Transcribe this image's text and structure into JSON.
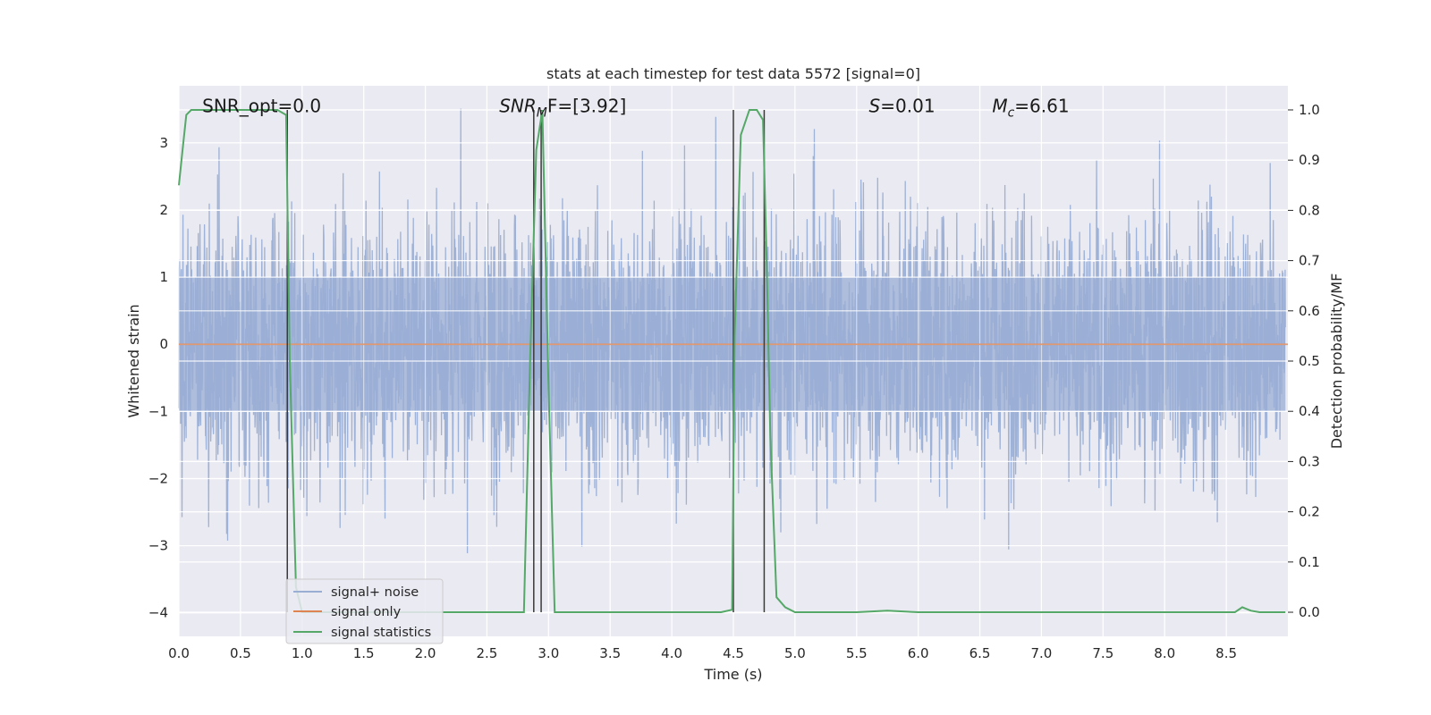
{
  "chart_data": {
    "type": "line",
    "title": "stats at each timestep for test data 5572 [signal=0]",
    "xlabel": "Time (s)",
    "ylabel_left": "Whitened strain",
    "ylabel_right": "Detection probability/MF",
    "xlim": [
      0.0,
      9.0
    ],
    "ylim_left": [
      -4.35,
      3.85
    ],
    "ylim_right": [
      -0.048,
      1.048
    ],
    "grid": true,
    "legend_position": "lower-left",
    "x_ticks": [
      "0.0",
      "0.5",
      "1.0",
      "1.5",
      "2.0",
      "2.5",
      "3.0",
      "3.5",
      "4.0",
      "4.5",
      "5.0",
      "5.5",
      "6.0",
      "6.5",
      "7.0",
      "7.5",
      "8.0",
      "8.5"
    ],
    "x_tick_values": [
      0.0,
      0.5,
      1.0,
      1.5,
      2.0,
      2.5,
      3.0,
      3.5,
      4.0,
      4.5,
      5.0,
      5.5,
      6.0,
      6.5,
      7.0,
      7.5,
      8.0,
      8.5
    ],
    "y_left_ticks": [
      "3",
      "2",
      "1",
      "0",
      "−1",
      "−2",
      "−3",
      "−4"
    ],
    "y_left_tick_values": [
      3,
      2,
      1,
      0,
      -1,
      -2,
      -3,
      -4
    ],
    "y_right_ticks": [
      "1.0",
      "0.9",
      "0.8",
      "0.7",
      "0.6",
      "0.5",
      "0.4",
      "0.3",
      "0.2",
      "0.1",
      "0.0"
    ],
    "y_right_tick_values": [
      1.0,
      0.9,
      0.8,
      0.7,
      0.6,
      0.5,
      0.4,
      0.3,
      0.2,
      0.1,
      0.0
    ],
    "annotations": [
      {
        "label": "SNR_opt=0.0",
        "x": 0.19,
        "y": 3.55
      },
      {
        "label": "SNR",
        "sub": "M",
        "rest": "F=[3.92]",
        "x": 2.6,
        "y": 3.55
      },
      {
        "label": "S",
        "rest": "=0.01",
        "x": 5.6,
        "y": 3.55
      },
      {
        "label": "M",
        "sub": "c",
        "rest": "=6.61",
        "x": 6.6,
        "y": 3.55
      }
    ],
    "series": [
      {
        "name": "signal+ noise",
        "axis": "left",
        "color": "#9aaed4",
        "style": "dense-noise",
        "band_min": -1.0,
        "band_max": 1.0,
        "typical_extremes": [
          -3.3,
          3.4
        ],
        "x_range": [
          0.0,
          8.98
        ]
      },
      {
        "name": "signal only",
        "axis": "left",
        "color": "#dd8452",
        "x": [
          0.0,
          9.0
        ],
        "y": [
          0.0,
          0.0
        ]
      },
      {
        "name": "signal statistics",
        "axis": "right",
        "color": "#55a868",
        "x": [
          0.0,
          0.03,
          0.06,
          0.1,
          0.2,
          0.5,
          0.8,
          0.87,
          0.9,
          0.95,
          1.0,
          2.5,
          2.8,
          2.85,
          2.9,
          2.95,
          3.0,
          3.05,
          3.1,
          4.4,
          4.49,
          4.51,
          4.56,
          4.63,
          4.69,
          4.74,
          4.77,
          4.8,
          4.85,
          4.92,
          5.0,
          5.07,
          5.5,
          5.75,
          6.0,
          8.5,
          8.57,
          8.63,
          8.7,
          8.77,
          8.98
        ],
        "y": [
          0.85,
          0.92,
          0.99,
          1.0,
          1.0,
          1.0,
          1.0,
          0.99,
          0.5,
          0.05,
          0.0,
          0.0,
          0.0,
          0.5,
          0.92,
          1.0,
          0.45,
          0.0,
          0.0,
          0.0,
          0.005,
          0.55,
          0.95,
          1.0,
          1.0,
          0.98,
          0.7,
          0.35,
          0.03,
          0.01,
          0.0,
          0.0,
          0.0,
          0.003,
          0.0,
          0.0,
          0.0,
          0.01,
          0.003,
          0.0,
          0.0
        ]
      }
    ],
    "vertical_lines": [
      {
        "x": 0.88,
        "color": "#3a3a3a"
      },
      {
        "x": 2.88,
        "color": "#3a3a3a"
      },
      {
        "x": 2.94,
        "color": "#3a3a3a"
      },
      {
        "x": 4.5,
        "color": "#3a3a3a"
      },
      {
        "x": 4.75,
        "color": "#3a3a3a"
      }
    ]
  }
}
